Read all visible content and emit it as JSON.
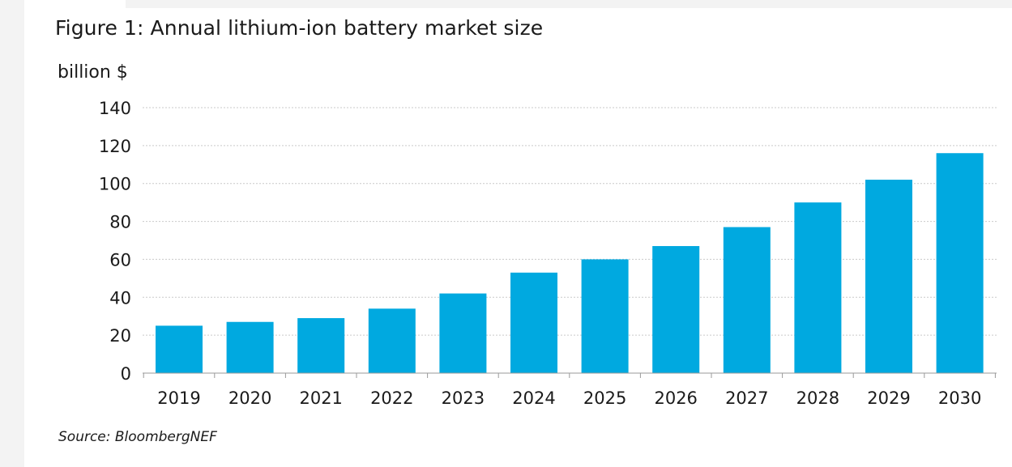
{
  "colors": {
    "bar": "#00a9e0",
    "grid": "#c9c9c9",
    "axis": "#9a9a9a",
    "text": "#1a1a1a"
  },
  "chart_data": {
    "type": "bar",
    "title": "Figure 1: Annual lithium-ion battery market size",
    "ylabel": "billion $",
    "xlabel": "",
    "categories": [
      "2019",
      "2020",
      "2021",
      "2022",
      "2023",
      "2024",
      "2025",
      "2026",
      "2027",
      "2028",
      "2029",
      "2030"
    ],
    "values": [
      25,
      27,
      29,
      34,
      42,
      53,
      60,
      67,
      77,
      90,
      102,
      116
    ],
    "ylim": [
      0,
      140
    ],
    "yticks": [
      "0",
      "20",
      "40",
      "60",
      "80",
      "100",
      "120",
      "140"
    ],
    "grid": true,
    "legend": "none"
  },
  "footer": {
    "source": "Source: BloombergNEF"
  }
}
